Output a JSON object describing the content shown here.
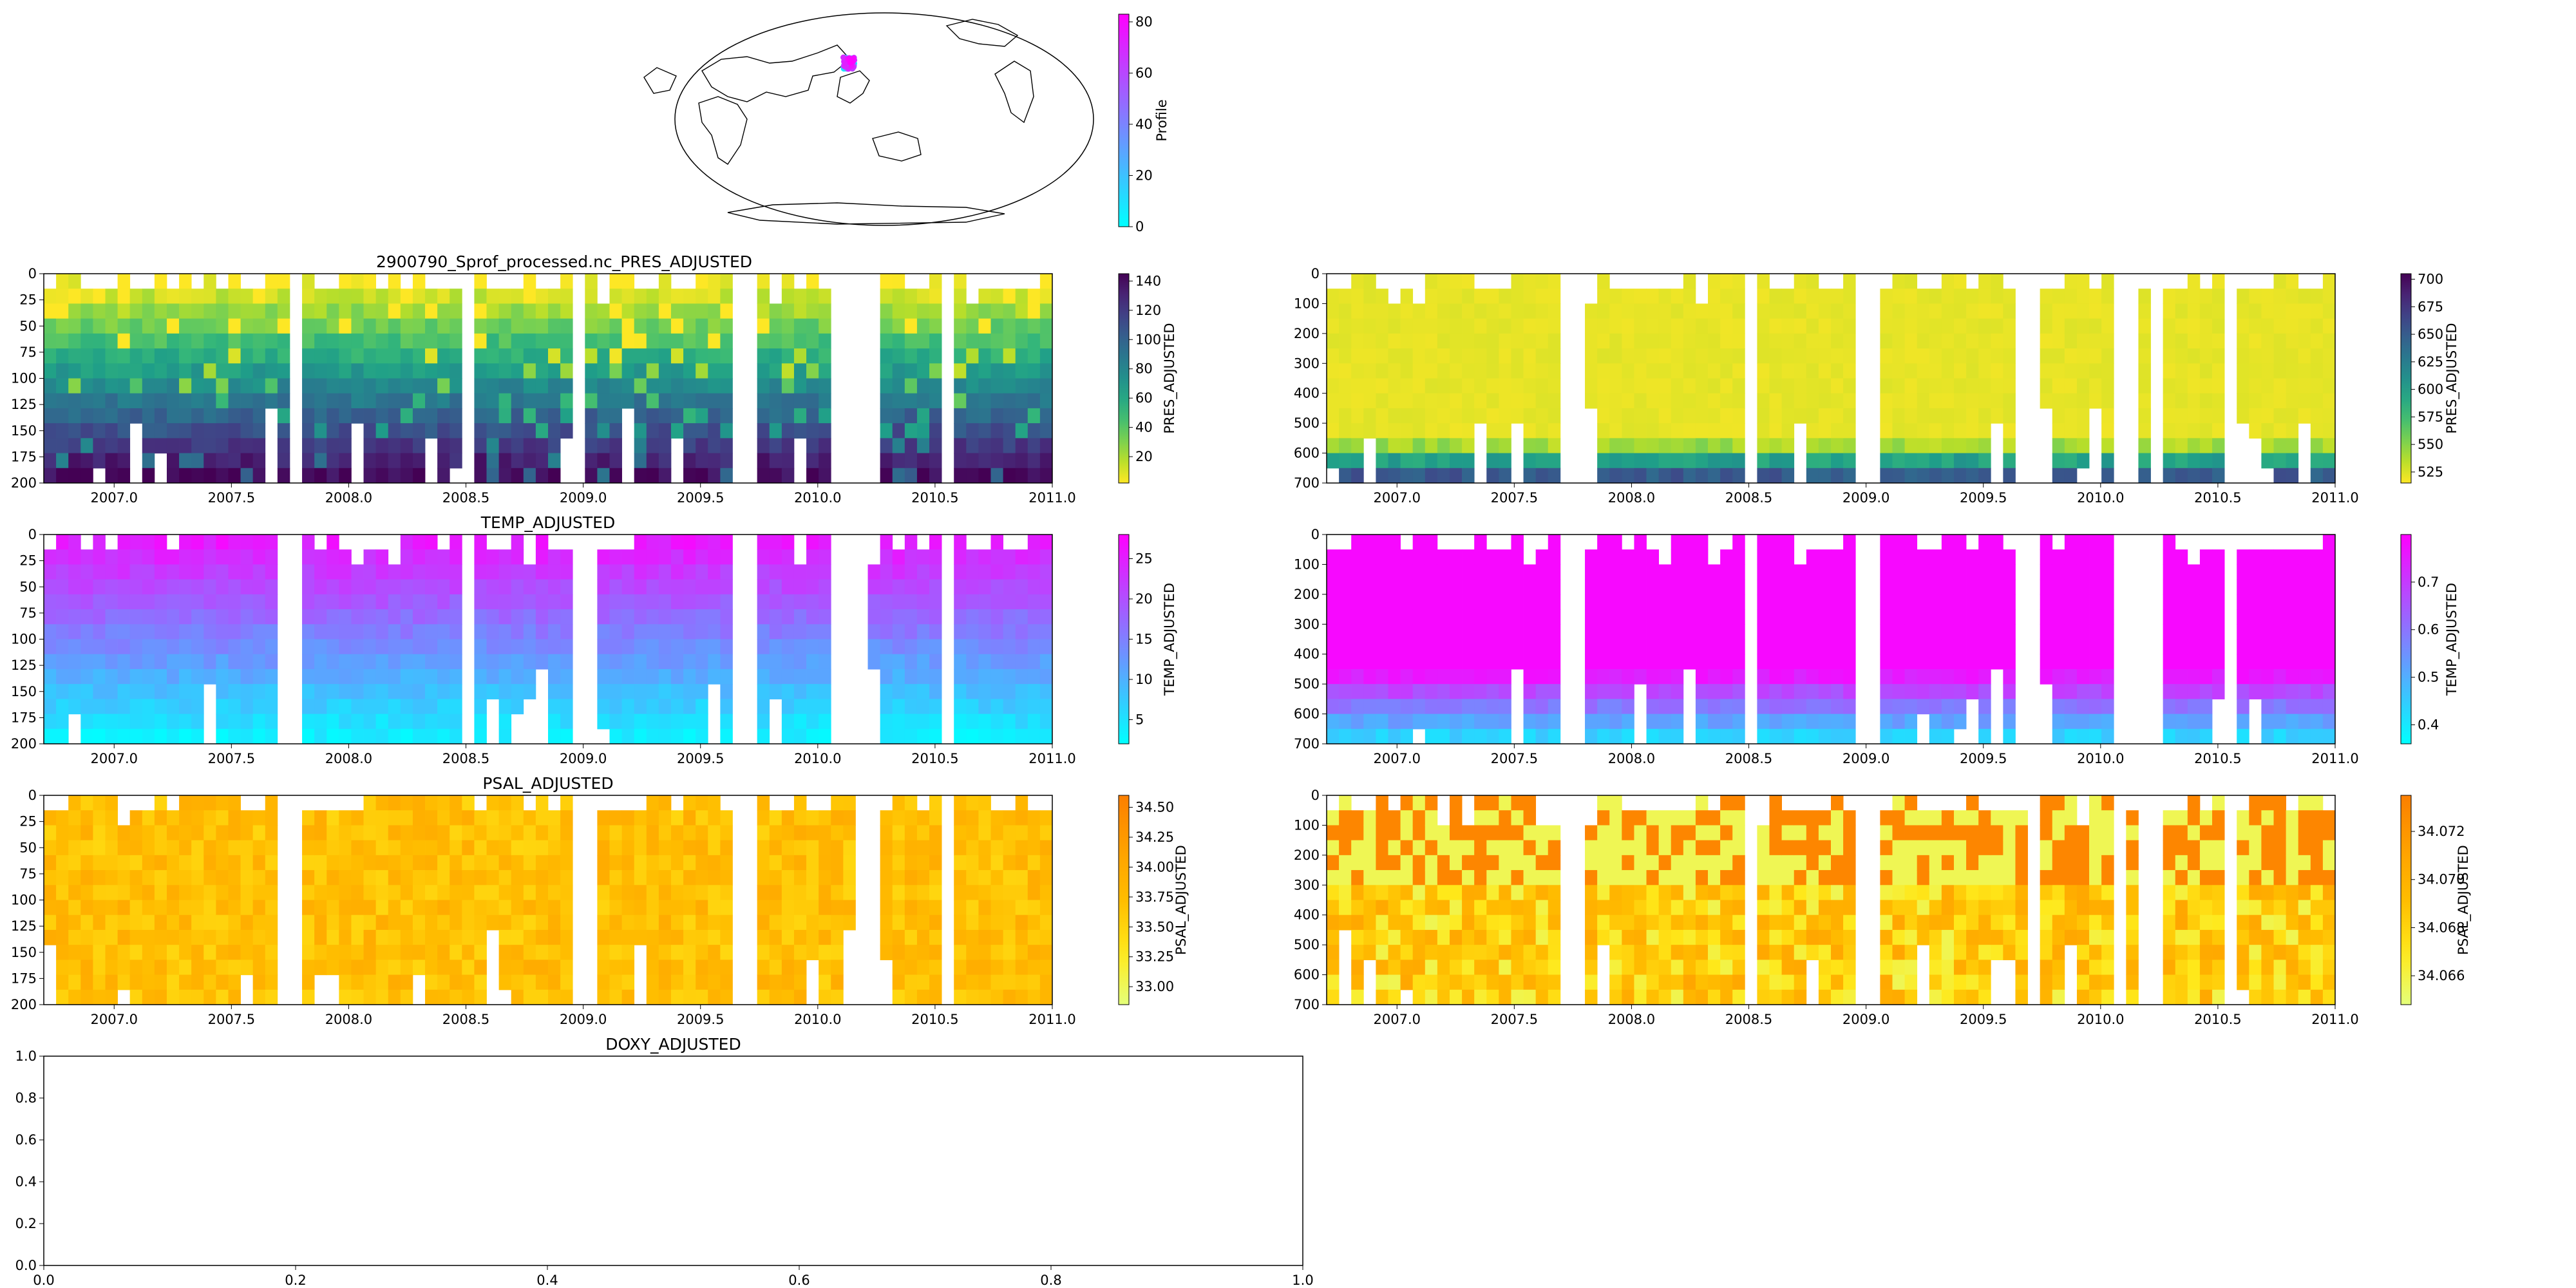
{
  "figure_title": "2900790_Sprof_processed.nc_PRES_ADJUSTED",
  "map": {
    "colorbar_label": "Profile",
    "colorbar_ticks": [
      0,
      20,
      40,
      60,
      80
    ],
    "colorbar_range": [
      0,
      83
    ],
    "colors": [
      "#00ffff",
      "#ff00ff"
    ]
  },
  "chart_data": [
    {
      "id": "pres_shallow",
      "type": "heatmap",
      "title": "",
      "colorbar_label": "PRES_ADJUSTED",
      "colormap": "viridis_r",
      "x_range": [
        2006.7,
        2011.0
      ],
      "y_range": [
        200,
        0
      ],
      "x_ticks": [
        2007.0,
        2007.5,
        2008.0,
        2008.5,
        2009.0,
        2009.5,
        2010.0,
        2010.5,
        2011.0
      ],
      "y_ticks": [
        0,
        25,
        50,
        75,
        100,
        125,
        150,
        175,
        200
      ],
      "c_range": [
        2,
        145
      ],
      "c_ticks": [
        20,
        40,
        60,
        80,
        100,
        120,
        140
      ]
    },
    {
      "id": "pres_deep",
      "type": "heatmap",
      "title": "",
      "colorbar_label": "PRES_ADJUSTED",
      "colormap": "viridis_r",
      "x_range": [
        2006.7,
        2011.0
      ],
      "y_range": [
        700,
        0
      ],
      "x_ticks": [
        2007.0,
        2007.5,
        2008.0,
        2008.5,
        2009.0,
        2009.5,
        2010.0,
        2010.5,
        2011.0
      ],
      "y_ticks": [
        0,
        100,
        200,
        300,
        400,
        500,
        600,
        700
      ],
      "c_range": [
        515,
        705
      ],
      "c_ticks": [
        525,
        550,
        575,
        600,
        625,
        650,
        675,
        700
      ]
    },
    {
      "id": "temp_shallow",
      "type": "heatmap",
      "title": "TEMP_ADJUSTED",
      "colorbar_label": "TEMP_ADJUSTED",
      "colormap": "cool",
      "x_range": [
        2006.7,
        2011.0
      ],
      "y_range": [
        200,
        0
      ],
      "x_ticks": [
        2007.0,
        2007.5,
        2008.0,
        2008.5,
        2009.0,
        2009.5,
        2010.0,
        2010.5,
        2011.0
      ],
      "y_ticks": [
        0,
        25,
        50,
        75,
        100,
        125,
        150,
        175,
        200
      ],
      "c_range": [
        2,
        28
      ],
      "c_ticks": [
        5,
        10,
        15,
        20,
        25
      ]
    },
    {
      "id": "temp_deep",
      "type": "heatmap",
      "title": "",
      "colorbar_label": "TEMP_ADJUSTED",
      "colormap": "cool",
      "x_range": [
        2006.7,
        2011.0
      ],
      "y_range": [
        700,
        0
      ],
      "x_ticks": [
        2007.0,
        2007.5,
        2008.0,
        2008.5,
        2009.0,
        2009.5,
        2010.0,
        2010.5,
        2011.0
      ],
      "y_ticks": [
        0,
        100,
        200,
        300,
        400,
        500,
        600,
        700
      ],
      "c_range": [
        0.36,
        0.8
      ],
      "c_ticks": [
        0.4,
        0.5,
        0.6,
        0.7
      ]
    },
    {
      "id": "psal_shallow",
      "type": "heatmap",
      "title": "PSAL_ADJUSTED",
      "colorbar_label": "PSAL_ADJUSTED",
      "colormap": "Wistia",
      "x_range": [
        2006.7,
        2011.0
      ],
      "y_range": [
        200,
        0
      ],
      "x_ticks": [
        2007.0,
        2007.5,
        2008.0,
        2008.5,
        2009.0,
        2009.5,
        2010.0,
        2010.5,
        2011.0
      ],
      "y_ticks": [
        0,
        25,
        50,
        75,
        100,
        125,
        150,
        175,
        200
      ],
      "c_ticks": [
        33.0,
        33.25,
        33.5,
        33.75,
        34.0,
        34.25,
        34.5
      ],
      "c_tick_labels": [
        "33.00",
        "33.25",
        "33.50",
        "33.75",
        "34.00",
        "34.25",
        "34.50"
      ],
      "c_range": [
        32.85,
        34.6
      ]
    },
    {
      "id": "psal_deep",
      "type": "heatmap",
      "title": "",
      "colorbar_label": "PSAL_ADJUSTED",
      "colormap": "Wistia",
      "x_range": [
        2006.7,
        2011.0
      ],
      "y_range": [
        700,
        0
      ],
      "x_ticks": [
        2007.0,
        2007.5,
        2008.0,
        2008.5,
        2009.0,
        2009.5,
        2010.0,
        2010.5,
        2011.0
      ],
      "y_ticks": [
        0,
        100,
        200,
        300,
        400,
        500,
        600,
        700
      ],
      "c_ticks": [
        34.066,
        34.068,
        34.07,
        34.072
      ],
      "c_tick_labels": [
        "34.066",
        "34.068",
        "34.070",
        "34.072"
      ],
      "c_range": [
        34.0648,
        34.0735
      ]
    },
    {
      "id": "doxy",
      "type": "line",
      "title": "DOXY_ADJUSTED",
      "series": [],
      "x_range": [
        0.0,
        1.0
      ],
      "y_range": [
        0.0,
        1.0
      ],
      "x_ticks": [
        0.0,
        0.2,
        0.4,
        0.6,
        0.8,
        1.0
      ],
      "y_ticks": [
        0.0,
        0.2,
        0.4,
        0.6,
        0.8,
        1.0
      ]
    }
  ]
}
